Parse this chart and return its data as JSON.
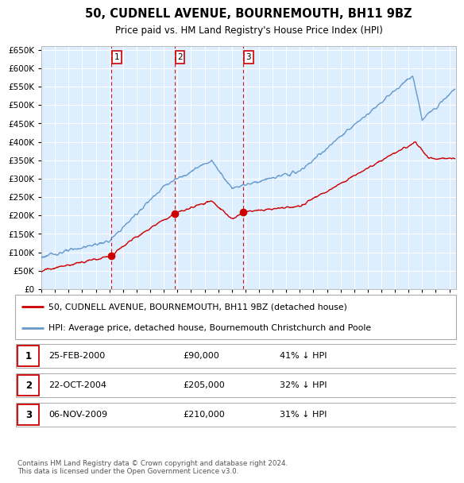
{
  "title": "50, CUDNELL AVENUE, BOURNEMOUTH, BH11 9BZ",
  "subtitle": "Price paid vs. HM Land Registry's House Price Index (HPI)",
  "plot_bg_color": "#ddeeff",
  "grid_color": "#ffffff",
  "legend_label_red": "50, CUDNELL AVENUE, BOURNEMOUTH, BH11 9BZ (detached house)",
  "legend_label_blue": "HPI: Average price, detached house, Bournemouth Christchurch and Poole",
  "sales": [
    {
      "date_num": 2000.15,
      "price": 90000,
      "label": "1"
    },
    {
      "date_num": 2004.81,
      "price": 205000,
      "label": "2"
    },
    {
      "date_num": 2009.85,
      "price": 210000,
      "label": "3"
    }
  ],
  "table_rows": [
    {
      "num": "1",
      "date": "25-FEB-2000",
      "price": "£90,000",
      "hpi": "41% ↓ HPI"
    },
    {
      "num": "2",
      "date": "22-OCT-2004",
      "price": "£205,000",
      "hpi": "32% ↓ HPI"
    },
    {
      "num": "3",
      "date": "06-NOV-2009",
      "price": "£210,000",
      "hpi": "31% ↓ HPI"
    }
  ],
  "footer": "Contains HM Land Registry data © Crown copyright and database right 2024.\nThis data is licensed under the Open Government Licence v3.0.",
  "red_color": "#cc0000",
  "blue_color": "#6699cc",
  "vline_color": "#cc0000",
  "xmin": 1995.0,
  "xmax": 2025.5,
  "ymin": 0,
  "ymax": 660000,
  "yticks": [
    0,
    50000,
    100000,
    150000,
    200000,
    250000,
    300000,
    350000,
    400000,
    450000,
    500000,
    550000,
    600000,
    650000
  ]
}
